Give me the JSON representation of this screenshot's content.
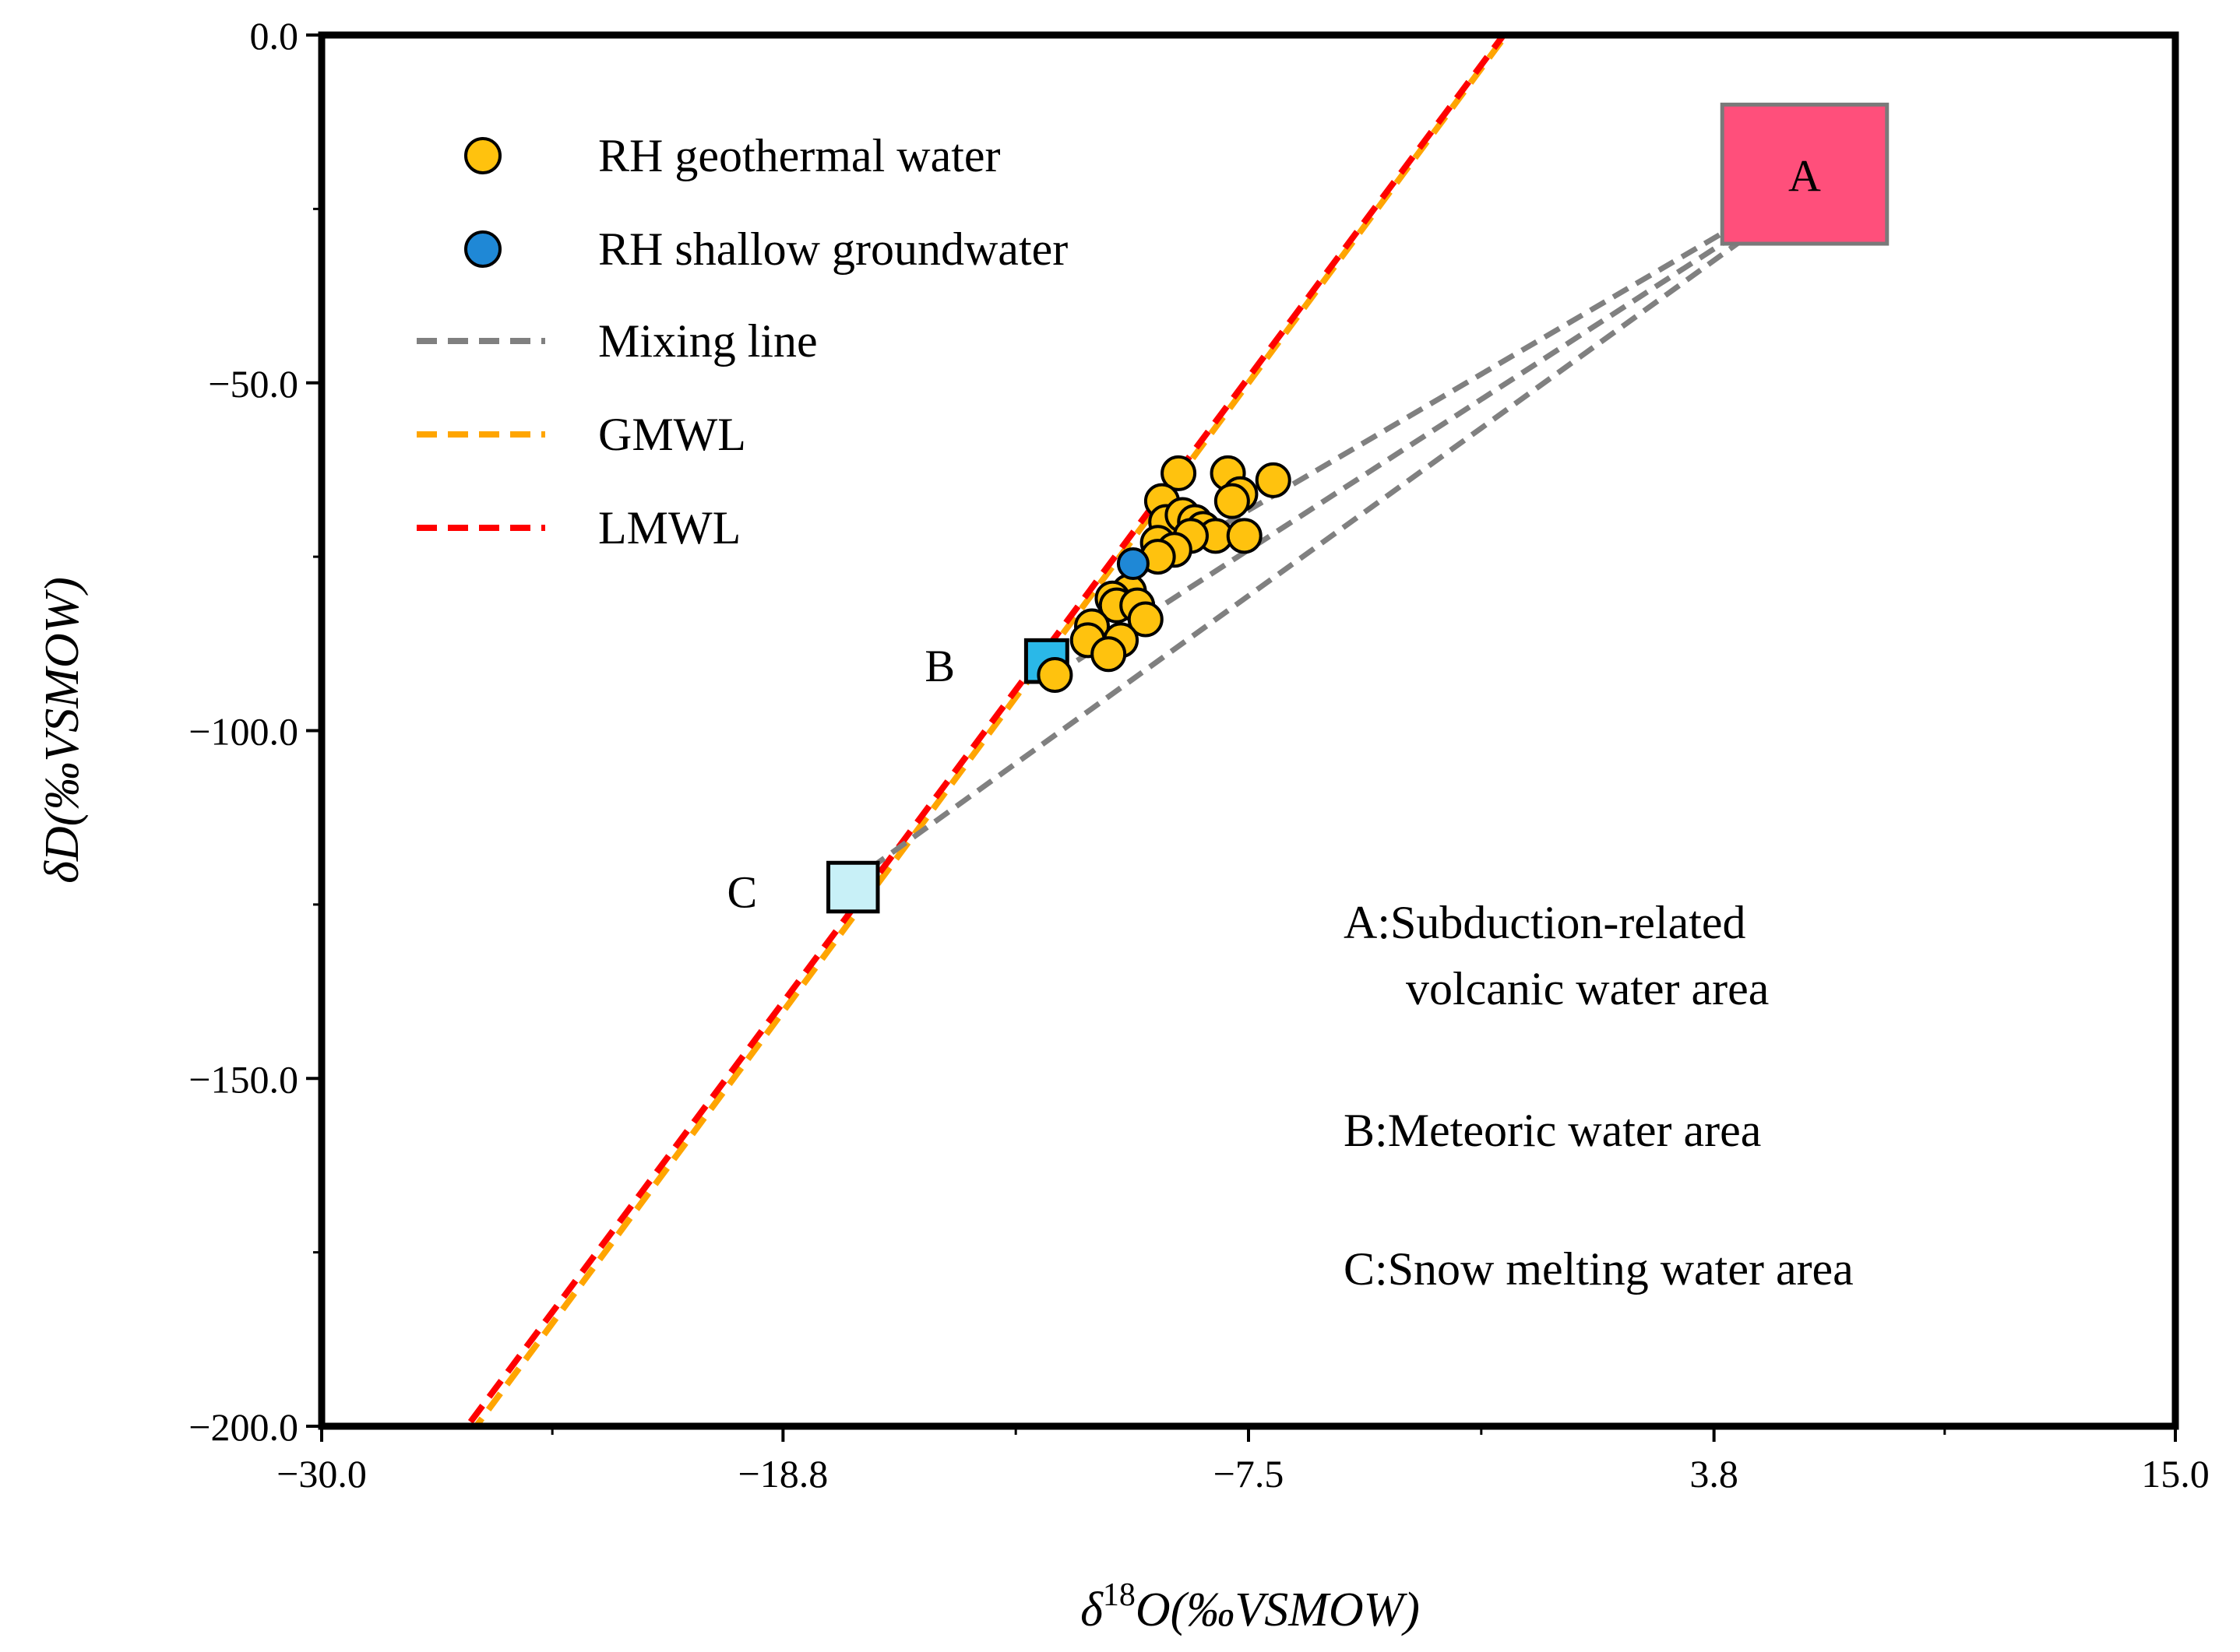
{
  "chart_data": {
    "type": "scatter",
    "xlabel_prefix": "δ",
    "xlabel_sup": "18",
    "xlabel_main": "O(‰VSMOW)",
    "ylabel": "δD(‰VSMOW)",
    "xlim": [
      -30.0,
      15.0
    ],
    "ylim": [
      -200.0,
      0.0
    ],
    "xticks": [
      -30.0,
      -18.8,
      -7.5,
      3.8,
      15.0
    ],
    "xtick_labels": [
      "−30.0",
      "−18.8",
      "−7.5",
      "3.8",
      "15.0"
    ],
    "yticks": [
      0.0,
      -50.0,
      -100.0,
      -150.0,
      -200.0
    ],
    "ytick_labels": [
      "0.0",
      "−50.0",
      "−100.0",
      "−150.0",
      "−200.0"
    ],
    "legend": [
      {
        "label": "RH geothermal water",
        "kind": "marker",
        "color": "#ffc20e"
      },
      {
        "label": "RH shallow groundwater",
        "kind": "marker",
        "color": "#1f88d6"
      },
      {
        "label": "Mixing line",
        "kind": "line",
        "color": "#808080"
      },
      {
        "label": "GMWL",
        "kind": "line",
        "color": "#ffa500"
      },
      {
        "label": "LMWL",
        "kind": "line",
        "color": "#ff0000"
      }
    ],
    "series": [
      {
        "name": "RH geothermal water",
        "color": "#ffc20e",
        "points": [
          [
            -9.2,
            -63
          ],
          [
            -8.0,
            -63
          ],
          [
            -6.9,
            -64
          ],
          [
            -7.7,
            -66
          ],
          [
            -7.9,
            -67
          ],
          [
            -9.6,
            -67
          ],
          [
            -9.5,
            -70
          ],
          [
            -9.1,
            -69
          ],
          [
            -8.8,
            -70
          ],
          [
            -8.6,
            -71
          ],
          [
            -8.3,
            -72
          ],
          [
            -7.6,
            -72
          ],
          [
            -8.9,
            -72
          ],
          [
            -9.7,
            -73
          ],
          [
            -9.3,
            -74
          ],
          [
            -9.7,
            -75
          ],
          [
            -10.4,
            -80
          ],
          [
            -10.8,
            -81
          ],
          [
            -10.7,
            -82
          ],
          [
            -10.2,
            -82
          ],
          [
            -10.0,
            -84
          ],
          [
            -11.3,
            -85
          ],
          [
            -10.6,
            -87
          ],
          [
            -11.4,
            -87
          ],
          [
            -10.9,
            -89
          ],
          [
            -12.2,
            -92
          ]
        ]
      },
      {
        "name": "RH shallow groundwater",
        "color": "#1f88d6",
        "points": [
          [
            -10.3,
            -76
          ]
        ]
      }
    ],
    "lines": [
      {
        "name": "GMWL",
        "color": "#ffa500",
        "slope": 8.0,
        "intercept": 10.0
      },
      {
        "name": "LMWL",
        "color": "#ff0000",
        "slope": 7.95,
        "intercept": 10.4
      }
    ],
    "mixing_lines": [
      {
        "from": [
          -10.3,
          -78
        ],
        "to": [
          5.3,
          -24
        ]
      },
      {
        "from": [
          -17.2,
          -122
        ],
        "to": [
          5.3,
          -26
        ]
      },
      {
        "from": [
          -12.2,
          -92
        ],
        "to": [
          5.3,
          -25
        ]
      }
    ],
    "regions": [
      {
        "label": "A",
        "x_range": [
          4.0,
          8.0
        ],
        "y_range": [
          -30,
          -10
        ],
        "color": "#ff4f7b",
        "label_side": "inside"
      },
      {
        "label": "B",
        "x_range": [
          -12.9,
          -11.9
        ],
        "y_range": [
          -93,
          -87
        ],
        "color": "#2ab8e8",
        "label_side": "left"
      },
      {
        "label": "C",
        "x_range": [
          -17.7,
          -16.5
        ],
        "y_range": [
          -126,
          -119
        ],
        "color": "#c8f0f7",
        "label_side": "left"
      }
    ],
    "annotations": [
      "A:Subduction-related",
      "volcanic water area",
      "B:Meteoric water area",
      "C:Snow melting water area"
    ]
  }
}
